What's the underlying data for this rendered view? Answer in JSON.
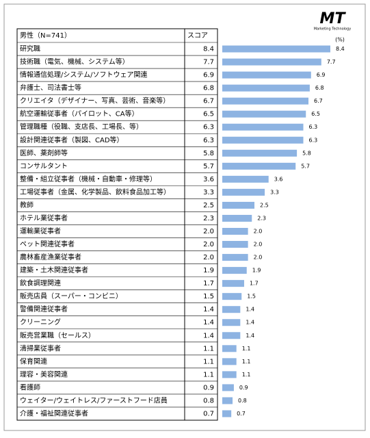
{
  "chart_data": {
    "type": "bar",
    "logo": "MT",
    "logo_sub": "Marketing Technology",
    "header": "男性（N=741）",
    "score_header": "スコア",
    "unit": "(%)",
    "color": "#8db3e2",
    "categories": [
      "研究職",
      "技術職（電気、機械、システム等）",
      "情報通信処理/システム/ソフトウェア関連",
      "弁護士、司法書士等",
      "クリエイタ（デザイナー、写真、芸術、音楽等）",
      "航空運輸従事者（パイロット、CA等）",
      "管理職種（役職、支店長、工場長、等）",
      "設計関連従事者（製図、CAD等）",
      "医師、薬剤師等",
      "コンサルタント",
      "整備・組立従事者（機械・自動車・修理等）",
      "工場従事者（金属、化学製品、飲料食品加工等）",
      "教師",
      "ホテル業従事者",
      "運輸業従事者",
      "ペット関連従事者",
      "農林畜産漁業従事者",
      "建築・土木関連従事者",
      "飲食調理関連",
      "販売店員（スーパー・コンビニ）",
      "警備関連従事者",
      "クリーニング",
      "販売営業職（セールス）",
      "清掃業従事者",
      "保育関連",
      "理容・美容関連",
      "看護師",
      "ウェイター/ウェイトレス/ファーストフード店員",
      "介護・福祉関連従事者"
    ],
    "values": [
      8.4,
      7.7,
      6.9,
      6.8,
      6.7,
      6.5,
      6.3,
      6.3,
      5.8,
      5.7,
      3.6,
      3.3,
      2.5,
      2.3,
      2,
      2,
      2,
      1.9,
      1.7,
      1.5,
      1.4,
      1.4,
      1.4,
      1.1,
      1.1,
      1.1,
      0.9,
      0.8,
      0.7
    ],
    "value_labels": [
      "8.4",
      "7.7",
      "6.9",
      "6.8",
      "6.7",
      "6.5",
      "6.3",
      "6.3",
      "5.8",
      "5.7",
      "3.6",
      "3.3",
      "2.5",
      "2.3",
      "2.0",
      "2.0",
      "2.0",
      "1.9",
      "1.7",
      "1.5",
      "1.4",
      "1.4",
      "1.4",
      "1.1",
      "1.1",
      "1.1",
      "0.9",
      "0.8",
      "0.7"
    ]
  }
}
